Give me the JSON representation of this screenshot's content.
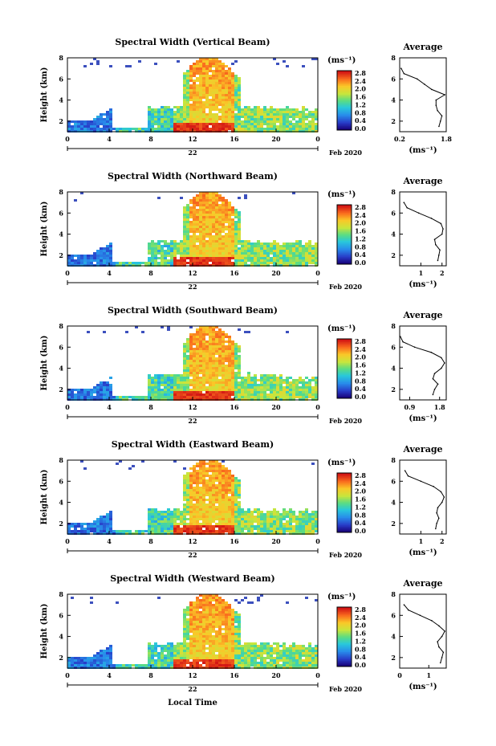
{
  "figure": {
    "xlabel": "Local Time",
    "date_suffix": "Feb 2020",
    "day_label": "22",
    "y_axis_label": "Height (km)",
    "colorbar_unit": "(ms⁻¹)",
    "profile_title": "Average",
    "profile_xlabel": "(ms⁻¹)"
  },
  "chart_data": [
    {
      "type": "heatmap",
      "title": "Spectral Width (Vertical Beam)",
      "xlabel": "Local Time",
      "ylabel": "Height (km)",
      "x_ticks": [
        "0",
        "4",
        "8",
        "12",
        "16",
        "20",
        "0"
      ],
      "y_ticks": [
        "2",
        "4",
        "6",
        "8"
      ],
      "xlim": [
        0,
        24
      ],
      "ylim": [
        1,
        8
      ],
      "colorbar": {
        "ticks": [
          "0.0",
          "0.4",
          "0.8",
          "1.2",
          "1.6",
          "2.0",
          "2.4",
          "2.8"
        ],
        "range": [
          0,
          3.0
        ]
      },
      "profile": {
        "title": "Average",
        "x_ticks": [
          "0.2",
          "1.8"
        ],
        "xlim": [
          0.2,
          1.8
        ],
        "y_ticks": [
          "2",
          "4",
          "6",
          "8"
        ],
        "heights": [
          1.5,
          2.0,
          2.5,
          3.0,
          3.5,
          4.0,
          4.5,
          5.0,
          5.5,
          6.0,
          6.5,
          7.0
        ],
        "values": [
          1.55,
          1.6,
          1.65,
          1.5,
          1.45,
          1.45,
          1.75,
          1.3,
          1.05,
          0.8,
          0.35,
          0.25
        ]
      }
    },
    {
      "type": "heatmap",
      "title": "Spectral Width (Northward Beam)",
      "xlabel": "Local Time",
      "ylabel": "Height (km)",
      "x_ticks": [
        "0",
        "4",
        "8",
        "12",
        "16",
        "20",
        "0"
      ],
      "y_ticks": [
        "2",
        "4",
        "6",
        "8"
      ],
      "xlim": [
        0,
        24
      ],
      "ylim": [
        1,
        8
      ],
      "colorbar": {
        "ticks": [
          "0.0",
          "0.4",
          "0.8",
          "1.2",
          "1.6",
          "2.0",
          "2.4",
          "2.8"
        ],
        "range": [
          0,
          3.0
        ]
      },
      "profile": {
        "title": "Average",
        "x_ticks": [
          "1",
          "2"
        ],
        "xlim": [
          0,
          2.2
        ],
        "y_ticks": [
          "2",
          "4",
          "6",
          "8"
        ],
        "heights": [
          1.5,
          2.0,
          2.5,
          3.0,
          3.5,
          4.0,
          4.5,
          5.0,
          5.5,
          6.0,
          6.5,
          7.0
        ],
        "values": [
          1.8,
          1.85,
          1.9,
          1.7,
          1.65,
          2.0,
          2.05,
          1.95,
          1.5,
          0.9,
          0.35,
          0.2
        ]
      }
    },
    {
      "type": "heatmap",
      "title": "Spectral Width (Southward Beam)",
      "xlabel": "Local Time",
      "ylabel": "Height (km)",
      "x_ticks": [
        "0",
        "4",
        "8",
        "12",
        "16",
        "20",
        "0"
      ],
      "y_ticks": [
        "2",
        "4",
        "6",
        "8"
      ],
      "xlim": [
        0,
        24
      ],
      "ylim": [
        1,
        8
      ],
      "colorbar": {
        "ticks": [
          "0.0",
          "0.4",
          "0.8",
          "1.2",
          "1.6",
          "2.0",
          "2.4",
          "2.8"
        ],
        "range": [
          0,
          3.0
        ]
      },
      "profile": {
        "title": "Average",
        "x_ticks": [
          "0.9",
          "1.8"
        ],
        "xlim": [
          0.6,
          2.0
        ],
        "y_ticks": [
          "2",
          "4",
          "6",
          "8"
        ],
        "heights": [
          1.5,
          2.0,
          2.5,
          3.0,
          3.5,
          4.0,
          4.5,
          5.0,
          5.5,
          6.0,
          6.5,
          7.0
        ],
        "values": [
          1.6,
          1.65,
          1.75,
          1.6,
          1.65,
          1.85,
          1.95,
          1.85,
          1.55,
          1.05,
          0.7,
          0.62
        ]
      }
    },
    {
      "type": "heatmap",
      "title": "Spectral Width (Eastward Beam)",
      "xlabel": "Local Time",
      "ylabel": "Height (km)",
      "x_ticks": [
        "0",
        "4",
        "8",
        "12",
        "16",
        "20",
        "0"
      ],
      "y_ticks": [
        "2",
        "4",
        "6",
        "8"
      ],
      "xlim": [
        0,
        24
      ],
      "ylim": [
        1,
        8
      ],
      "colorbar": {
        "ticks": [
          "0.0",
          "0.4",
          "0.8",
          "1.2",
          "1.6",
          "2.0",
          "2.4",
          "2.8"
        ],
        "range": [
          0,
          3.0
        ]
      },
      "profile": {
        "title": "Average",
        "x_ticks": [
          "1",
          "2"
        ],
        "xlim": [
          0,
          2.2
        ],
        "y_ticks": [
          "2",
          "4",
          "6",
          "8"
        ],
        "heights": [
          1.5,
          2.0,
          2.5,
          3.0,
          3.5,
          4.0,
          4.5,
          5.0,
          5.5,
          6.0,
          6.5,
          7.0
        ],
        "values": [
          1.7,
          1.75,
          1.85,
          1.75,
          1.8,
          2.0,
          2.1,
          1.95,
          1.6,
          1.0,
          0.4,
          0.25
        ]
      }
    },
    {
      "type": "heatmap",
      "title": "Spectral Width (Westward Beam)",
      "xlabel": "Local Time",
      "ylabel": "Height (km)",
      "x_ticks": [
        "0",
        "4",
        "8",
        "12",
        "16",
        "20",
        "0"
      ],
      "y_ticks": [
        "2",
        "4",
        "6",
        "8"
      ],
      "xlim": [
        0,
        24
      ],
      "ylim": [
        1,
        8
      ],
      "colorbar": {
        "ticks": [
          "0.0",
          "0.4",
          "0.8",
          "1.2",
          "1.6",
          "2.0",
          "2.4",
          "2.8"
        ],
        "range": [
          0,
          3.0
        ]
      },
      "profile": {
        "title": "Average",
        "x_ticks": [
          "0",
          "1"
        ],
        "xlim": [
          0,
          1.6
        ],
        "y_ticks": [
          "2",
          "4",
          "6",
          "8"
        ],
        "heights": [
          1.5,
          2.0,
          2.5,
          3.0,
          3.5,
          4.0,
          4.5,
          5.0,
          5.5,
          6.0,
          6.5,
          7.0
        ],
        "values": [
          1.4,
          1.45,
          1.5,
          1.35,
          1.3,
          1.45,
          1.55,
          1.35,
          1.1,
          0.7,
          0.3,
          0.15
        ]
      }
    }
  ]
}
